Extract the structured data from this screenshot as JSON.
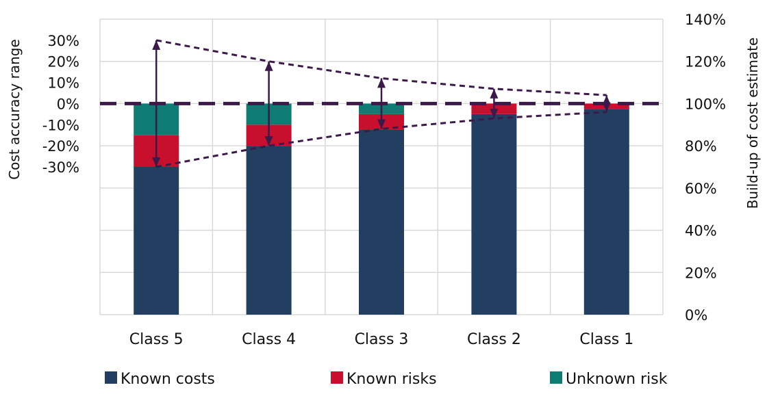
{
  "chart_data": {
    "type": "bar",
    "stacked": true,
    "categories": [
      "Class 5",
      "Class 4",
      "Class 3",
      "Class 2",
      "Class 1"
    ],
    "series": [
      {
        "name": "Known costs",
        "values": [
          70,
          80,
          87.5,
          95,
          97.5
        ]
      },
      {
        "name": "Known risks",
        "values": [
          15,
          10,
          7.5,
          5,
          2.5
        ]
      },
      {
        "name": "Unknown risk",
        "values": [
          15,
          10,
          5,
          0,
          0
        ]
      }
    ],
    "accuracy_range": {
      "upper": [
        30,
        20,
        12,
        7,
        4
      ],
      "lower": [
        -30,
        -20,
        -12,
        -7,
        -4
      ]
    },
    "baseline": 100,
    "y_right": {
      "label": "Build-up of cost estimate",
      "ticks": [
        "0%",
        "20%",
        "40%",
        "60%",
        "80%",
        "100%",
        "120%",
        "140%"
      ],
      "ylim": [
        0,
        140
      ]
    },
    "y_left": {
      "label": "Cost accuracy range",
      "ticks": [
        "30%",
        "20%",
        "10%",
        "0%",
        "-10%",
        "-20%",
        "-30%"
      ]
    },
    "grid": true,
    "legend_position": "bottom"
  },
  "colors": {
    "known_costs": "#223f61",
    "known_risks": "#c8102e",
    "unknown_risk": "#0e7c72",
    "range_line": "#3b1a4a",
    "grid": "#d9d9d9"
  }
}
